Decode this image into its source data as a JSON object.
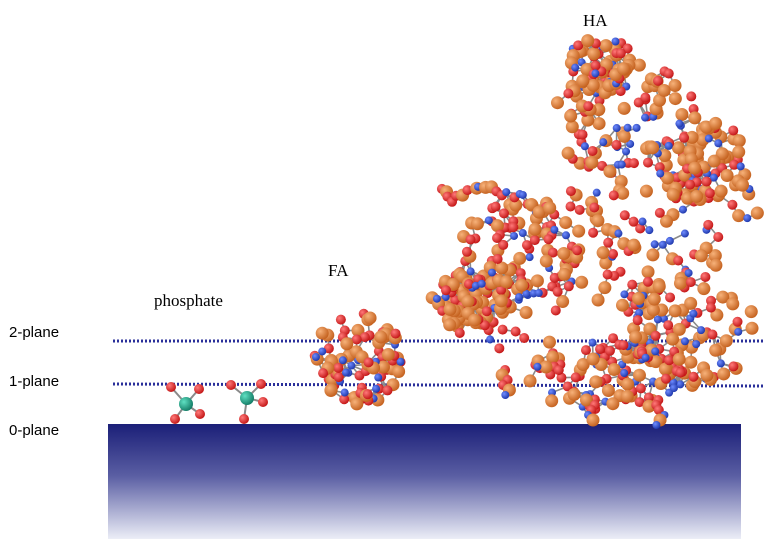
{
  "labels": {
    "phosphate": "phosphate",
    "fa": "FA",
    "ha": "HA",
    "plane2": "2-plane",
    "plane1": "1-plane",
    "plane0": "0-plane"
  },
  "colors": {
    "surface_top": "#1b1f78",
    "surface_bottom": "#e9ebf6",
    "plane_line": "#2a2f9a",
    "carbon": "#d9772d",
    "oxygen": "#e01b1b",
    "nitrogen": "#2442c8",
    "phosphorus": "#1a9a80",
    "bond": "#8a8a8a"
  }
}
